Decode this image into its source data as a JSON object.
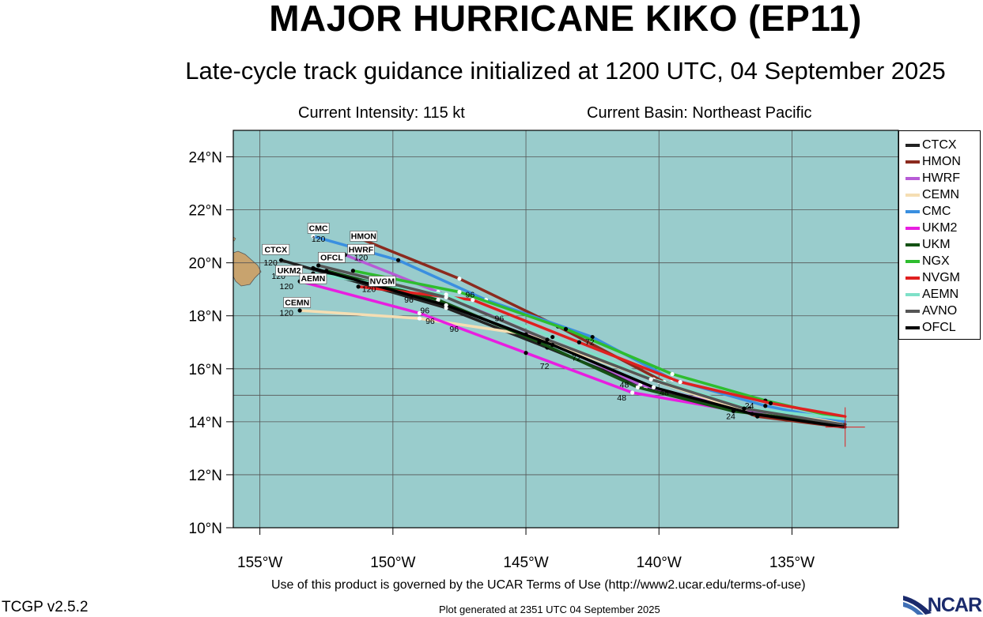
{
  "header": {
    "title": "MAJOR HURRICANE KIKO (EP11)",
    "subtitle": "Late-cycle track guidance initialized at 1200 UTC, 04 September 2025",
    "current_intensity": "Current Intensity: 115 kt",
    "current_basin": "Current Basin: Northeast Pacific"
  },
  "axes": {
    "lat_labels": [
      "24°N",
      "22°N",
      "20°N",
      "18°N",
      "16°N",
      "14°N",
      "12°N",
      "10°N"
    ],
    "lon_labels": [
      "155°W",
      "150°W",
      "145°W",
      "140°W",
      "135°W"
    ]
  },
  "map": {
    "lon_range": [
      -156,
      -131
    ],
    "lat_range": [
      10,
      25
    ],
    "ocean_color": "#99cccc",
    "land_color": "#c8a36e",
    "grid_lons": [
      -155,
      -150,
      -145,
      -140,
      -135
    ],
    "grid_lats": [
      24,
      22,
      20,
      18,
      16,
      15,
      14,
      12,
      10
    ],
    "storm_position": {
      "lon": -133.0,
      "lat": 13.8
    }
  },
  "legend": [
    {
      "label": "CTCX",
      "color": "#222222"
    },
    {
      "label": "HMON",
      "color": "#8b2a1e"
    },
    {
      "label": "HWRF",
      "color": "#b75bd6"
    },
    {
      "label": "CEMN",
      "color": "#f5deb3"
    },
    {
      "label": "CMC",
      "color": "#3a8fe0"
    },
    {
      "label": "UKM2",
      "color": "#e81ee0"
    },
    {
      "label": "UKM",
      "color": "#145214"
    },
    {
      "label": "NGX",
      "color": "#2ebd2e"
    },
    {
      "label": "NVGM",
      "color": "#e02020"
    },
    {
      "label": "AEMN",
      "color": "#7fe0c8"
    },
    {
      "label": "AVNO",
      "color": "#555555"
    },
    {
      "label": "OFCL",
      "color": "#000000"
    }
  ],
  "tracks": [
    {
      "name": "CTCX",
      "color": "#222222",
      "points": [
        [
          -133.0,
          13.9
        ],
        [
          -136.8,
          14.4
        ],
        [
          -140.5,
          15.3
        ],
        [
          -144.2,
          16.8
        ],
        [
          -148.0,
          18.3
        ],
        [
          -154.2,
          20.1
        ]
      ]
    },
    {
      "name": "HMON",
      "color": "#8b2a1e",
      "points": [
        [
          -133.1,
          13.8
        ],
        [
          -136.3,
          14.2
        ],
        [
          -139.8,
          15.5
        ],
        [
          -143.8,
          17.6
        ],
        [
          -147.5,
          19.4
        ],
        [
          -151.2,
          20.9
        ]
      ]
    },
    {
      "name": "HWRF",
      "color": "#b75bd6",
      "points": [
        [
          -133.2,
          13.9
        ],
        [
          -137.0,
          14.5
        ],
        [
          -140.7,
          15.4
        ],
        [
          -144.5,
          17.2
        ],
        [
          -148.3,
          18.9
        ],
        [
          -151.8,
          20.3
        ]
      ]
    },
    {
      "name": "CEMN",
      "color": "#f5deb3",
      "points": [
        [
          -133.1,
          14.0
        ],
        [
          -136.5,
          14.3
        ],
        [
          -140.0,
          15.5
        ],
        [
          -145.0,
          17.3
        ],
        [
          -149.0,
          17.9
        ],
        [
          -153.5,
          18.2
        ]
      ]
    },
    {
      "name": "CMC",
      "color": "#3a8fe0",
      "points": [
        [
          -133.0,
          14.0
        ],
        [
          -136.0,
          14.6
        ],
        [
          -139.5,
          15.6
        ],
        [
          -142.5,
          17.2
        ],
        [
          -146.5,
          18.6
        ],
        [
          -149.8,
          20.1
        ],
        [
          -153.0,
          21.0
        ]
      ]
    },
    {
      "name": "UKM2",
      "color": "#e81ee0",
      "points": [
        [
          -133.0,
          13.8
        ],
        [
          -137.0,
          14.4
        ],
        [
          -141.0,
          15.1
        ],
        [
          -145.0,
          16.6
        ],
        [
          -149.0,
          18.1
        ],
        [
          -153.5,
          19.3
        ]
      ]
    },
    {
      "name": "UKM",
      "color": "#145214",
      "points": [
        [
          -133.1,
          13.9
        ],
        [
          -137.2,
          14.4
        ],
        [
          -140.8,
          15.3
        ],
        [
          -144.5,
          17.0
        ],
        [
          -148.3,
          18.6
        ],
        [
          -152.5,
          19.7
        ]
      ]
    },
    {
      "name": "NGX",
      "color": "#2ebd2e",
      "points": [
        [
          -133.0,
          14.1
        ],
        [
          -136.0,
          14.8
        ],
        [
          -139.5,
          15.8
        ],
        [
          -143.5,
          17.5
        ],
        [
          -147.5,
          18.9
        ],
        [
          -151.5,
          19.7
        ]
      ]
    },
    {
      "name": "NVGM",
      "color": "#e02020",
      "points": [
        [
          -133.0,
          14.2
        ],
        [
          -135.8,
          14.7
        ],
        [
          -139.2,
          15.5
        ],
        [
          -143.0,
          17.0
        ],
        [
          -147.0,
          18.6
        ],
        [
          -151.3,
          19.1
        ]
      ]
    },
    {
      "name": "AEMN",
      "color": "#7fe0c8",
      "points": [
        [
          -133.0,
          14.1
        ],
        [
          -136.6,
          14.5
        ],
        [
          -140.2,
          15.6
        ],
        [
          -144.0,
          17.2
        ],
        [
          -148.0,
          18.8
        ],
        [
          -153.0,
          19.6
        ]
      ]
    },
    {
      "name": "AVNO",
      "color": "#555555",
      "points": [
        [
          -133.1,
          13.9
        ],
        [
          -136.8,
          14.5
        ],
        [
          -140.3,
          15.6
        ],
        [
          -144.2,
          17.1
        ],
        [
          -148.0,
          18.7
        ],
        [
          -152.8,
          19.9
        ]
      ]
    },
    {
      "name": "OFCL",
      "color": "#000000",
      "points": [
        [
          -133.0,
          13.8
        ],
        [
          -136.5,
          14.3
        ],
        [
          -140.2,
          15.3
        ],
        [
          -144.0,
          16.9
        ],
        [
          -148.0,
          18.4
        ],
        [
          -153.0,
          19.8
        ]
      ]
    }
  ],
  "end_labels": [
    {
      "text": "CTCX",
      "lon": -154.4,
      "lat": 20.4
    },
    {
      "text": "CMC",
      "lon": -152.8,
      "lat": 21.2
    },
    {
      "text": "HMON",
      "lon": -151.1,
      "lat": 20.9
    },
    {
      "text": "HWRF",
      "lon": -151.2,
      "lat": 20.4
    },
    {
      "text": "OFCL",
      "lon": -152.3,
      "lat": 20.1
    },
    {
      "text": "UKM2",
      "lon": -153.9,
      "lat": 19.6
    },
    {
      "text": "AEMN",
      "lon": -153.0,
      "lat": 19.3
    },
    {
      "text": "NVGM",
      "lon": -150.4,
      "lat": 19.2
    },
    {
      "text": "CEMN",
      "lon": -153.6,
      "lat": 18.4
    }
  ],
  "hour_labels": [
    {
      "text": "120",
      "lon": -152.8,
      "lat": 20.8
    },
    {
      "text": "120",
      "lon": -154.6,
      "lat": 19.9
    },
    {
      "text": "120",
      "lon": -151.2,
      "lat": 20.1
    },
    {
      "text": "120",
      "lon": -154.3,
      "lat": 19.4
    },
    {
      "text": "120",
      "lon": -154.0,
      "lat": 19.0
    },
    {
      "text": "120",
      "lon": -150.9,
      "lat": 18.9
    },
    {
      "text": "120",
      "lon": -154.0,
      "lat": 18.0
    },
    {
      "text": "96",
      "lon": -149.4,
      "lat": 18.5
    },
    {
      "text": "96",
      "lon": -148.8,
      "lat": 18.1
    },
    {
      "text": "96",
      "lon": -148.6,
      "lat": 17.7
    },
    {
      "text": "96",
      "lon": -147.7,
      "lat": 17.4
    },
    {
      "text": "96",
      "lon": -147.1,
      "lat": 18.7
    },
    {
      "text": "96",
      "lon": -146.0,
      "lat": 17.8
    },
    {
      "text": "72",
      "lon": -142.6,
      "lat": 16.9
    },
    {
      "text": "72",
      "lon": -144.3,
      "lat": 16.0
    },
    {
      "text": "72",
      "lon": -143.1,
      "lat": 16.3
    },
    {
      "text": "48",
      "lon": -141.3,
      "lat": 15.3
    },
    {
      "text": "48",
      "lon": -141.4,
      "lat": 14.8
    },
    {
      "text": "48",
      "lon": -139.8,
      "lat": 15.0
    },
    {
      "text": "24",
      "lon": -137.3,
      "lat": 14.1
    },
    {
      "text": "24",
      "lon": -136.6,
      "lat": 14.5
    }
  ],
  "footer": {
    "terms": "Use of this product is governed by the UCAR Terms of Use (http://www2.ucar.edu/terms-of-use)",
    "version": "TCGP v2.5.2",
    "generated": "Plot generated at 2351 UTC   04 September 2025",
    "logo_text": "NCAR"
  }
}
